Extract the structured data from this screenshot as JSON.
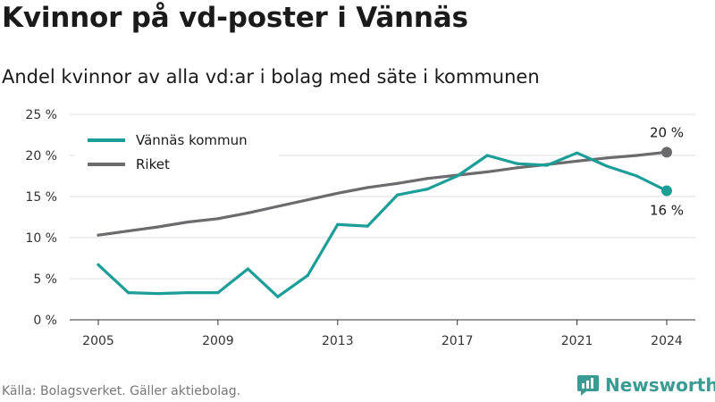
{
  "title": "Kvinnor på vd-poster i Vännäs",
  "subtitle": "Andel kvinnor av alla vd:ar i bolag med säte i kommunen",
  "source": "Källa: Bolagsverket. Gäller aktiebolag.",
  "brand": "Newsworthy",
  "colors": {
    "vannas": "#1a9e97",
    "riket": "#6b6b6d",
    "grid": "#dddddd",
    "brand": "#3a9b92"
  },
  "chart_data": {
    "type": "line",
    "title": "Kvinnor på vd-poster i Vännäs",
    "subtitle": "Andel kvinnor av alla vd:ar i bolag med säte i kommunen",
    "xlabel": "",
    "ylabel": "",
    "x": [
      2005,
      2006,
      2007,
      2008,
      2009,
      2010,
      2011,
      2012,
      2013,
      2014,
      2015,
      2016,
      2017,
      2018,
      2019,
      2020,
      2021,
      2022,
      2023,
      2024
    ],
    "x_ticks": [
      2005,
      2009,
      2013,
      2017,
      2021,
      2024
    ],
    "y_ticks": [
      "0 %",
      "5 %",
      "10 %",
      "15 %",
      "20 %",
      "25 %"
    ],
    "ylim": [
      0,
      25
    ],
    "grid": true,
    "legend_position": "top-left",
    "series": [
      {
        "name": "Vännäs kommun",
        "color": "#1a9e97",
        "values": [
          6.7,
          3.3,
          3.2,
          3.3,
          3.3,
          6.2,
          2.8,
          5.4,
          11.6,
          11.4,
          15.2,
          15.9,
          17.5,
          20.0,
          19.0,
          18.8,
          20.3,
          18.7,
          17.5,
          15.7
        ],
        "end_label": "16 %"
      },
      {
        "name": "Riket",
        "color": "#6b6b6d",
        "values": [
          10.3,
          10.8,
          11.3,
          11.9,
          12.3,
          13.0,
          13.8,
          14.6,
          15.4,
          16.1,
          16.6,
          17.2,
          17.6,
          18.0,
          18.5,
          18.9,
          19.3,
          19.7,
          20.0,
          20.4
        ],
        "end_label": "20 %"
      }
    ]
  }
}
